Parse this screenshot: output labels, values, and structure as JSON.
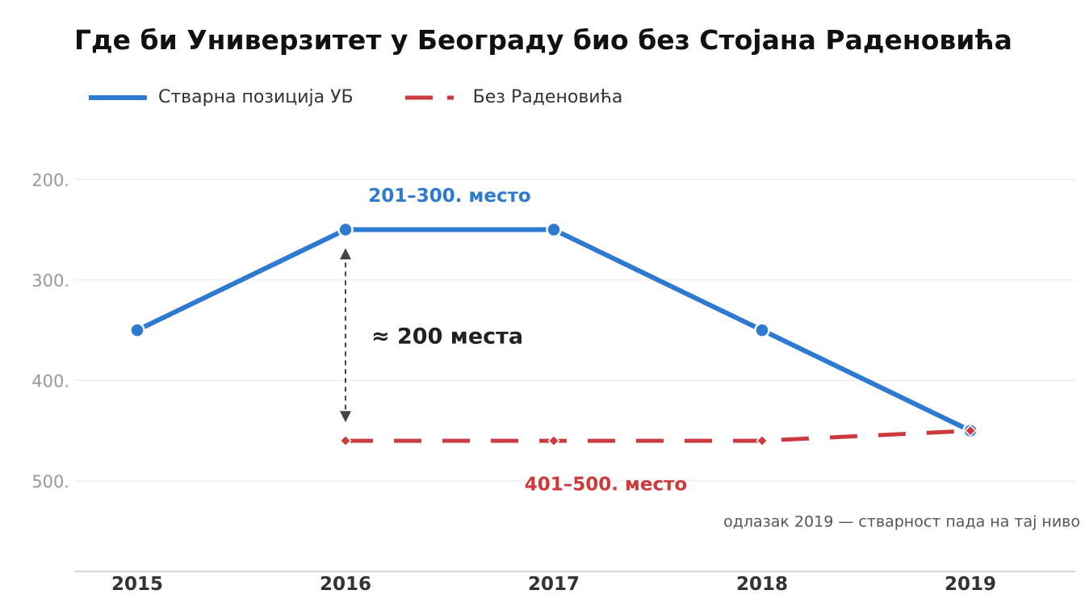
{
  "chart_data": {
    "type": "line",
    "title": "Где би Универзитет у Београду био без Стојана Радено­вића",
    "x": [
      "2015",
      "2016",
      "2017",
      "2018",
      "2019"
    ],
    "y_ticks": [
      {
        "value": 200,
        "label": "200."
      },
      {
        "value": 300,
        "label": "300."
      },
      {
        "value": 400,
        "label": "400."
      },
      {
        "value": 500,
        "label": "500."
      }
    ],
    "ylim": [
      150,
      590
    ],
    "y_inverted": true,
    "grid": true,
    "legend_position": "top-left",
    "series": [
      {
        "name": "Стварна позиција УБ",
        "color": "#2E7AD1",
        "style": "solid",
        "marker": "circle",
        "values": [
          350,
          250,
          250,
          350,
          450
        ]
      },
      {
        "name": "Без Радено­вића",
        "color": "#CC3B3B",
        "style": "dashed",
        "marker": "diamond",
        "values": [
          null,
          460,
          460,
          460,
          450
        ]
      }
    ],
    "annotations": {
      "top_range": {
        "text": "201–300. место",
        "color": "#2E7AD1",
        "x_index": 1.5,
        "y": 216
      },
      "bottom_range": {
        "text": "401–500. место",
        "color": "#CC3B3B",
        "x_index": 2.25,
        "y": 503
      },
      "gap": {
        "text": "≈ 200 места",
        "x_index": 1,
        "from": 274,
        "to": 436
      },
      "note": {
        "text": "одлазак 2019 — стварност пада на тај ниво",
        "y": 540
      }
    }
  }
}
